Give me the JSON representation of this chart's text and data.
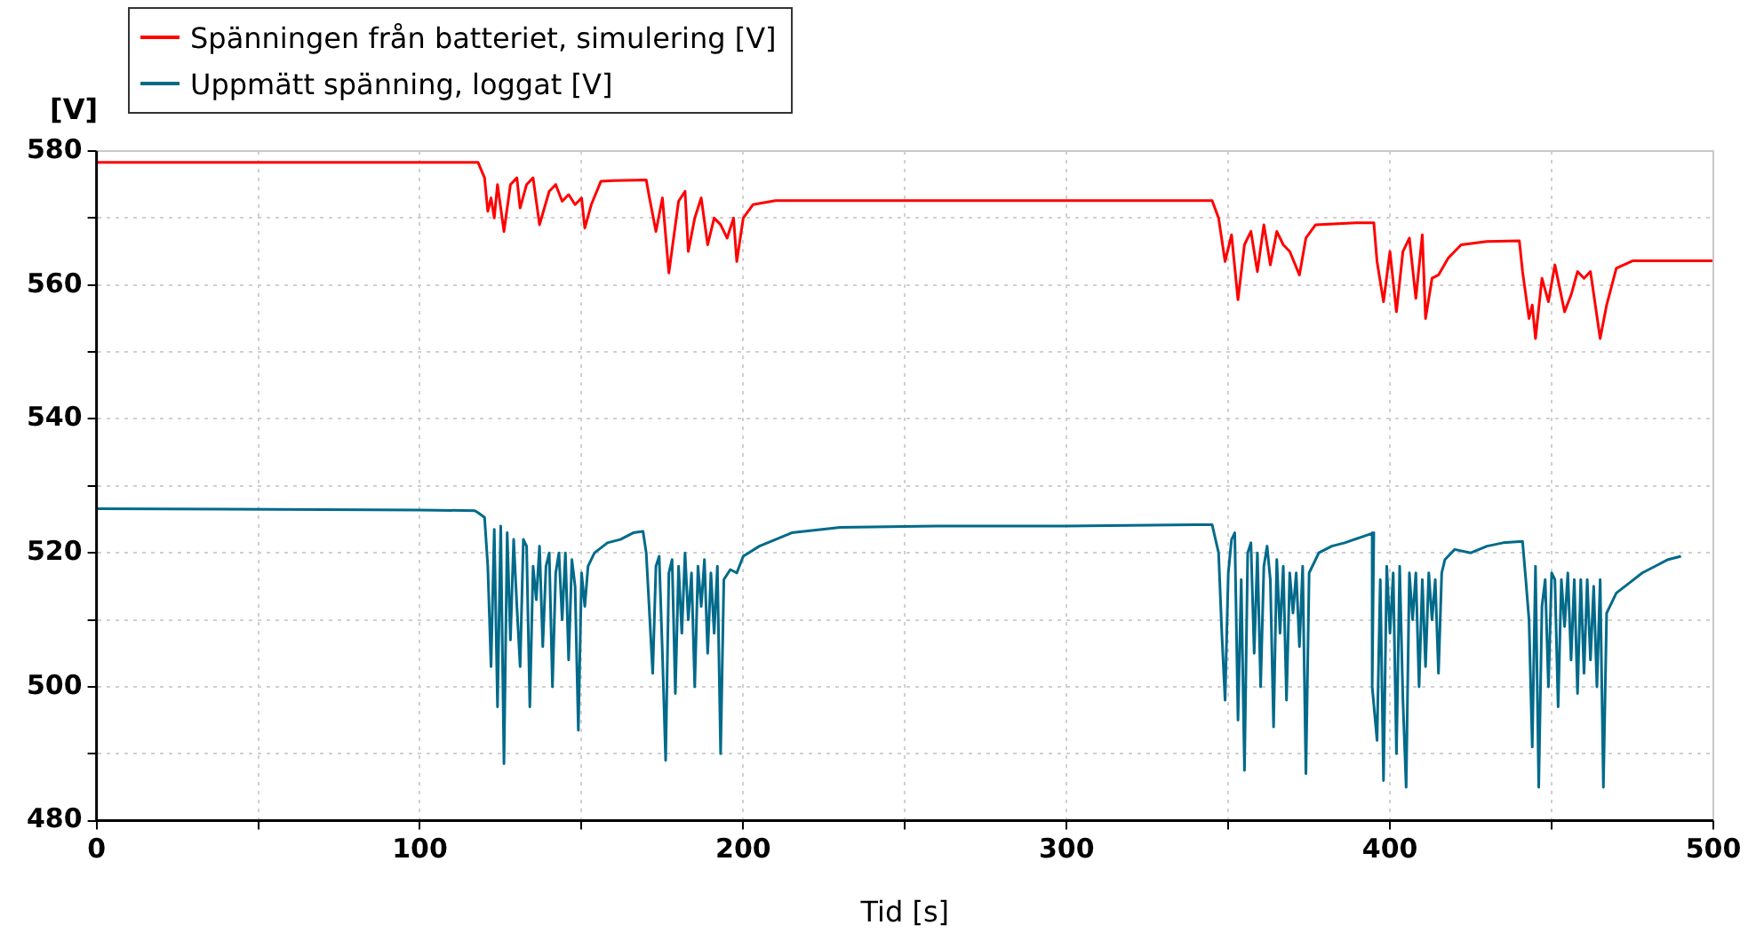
{
  "chart_data": {
    "type": "line",
    "xlabel": "Tid [s]",
    "ylabel": "[V]",
    "xlim": [
      0,
      500
    ],
    "ylim": [
      480,
      580
    ],
    "xticks": [
      0,
      {
        "value": 50,
        "label": null
      },
      100,
      {
        "value": 150,
        "label": null
      },
      200,
      {
        "value": 250,
        "label": null
      },
      300,
      {
        "value": 350,
        "label": null
      },
      400,
      {
        "value": 450,
        "label": null
      },
      500
    ],
    "yticks": [
      480,
      {
        "value": 490,
        "label": null
      },
      500,
      {
        "value": 510,
        "label": null
      },
      520,
      {
        "value": 530,
        "label": null
      },
      540,
      {
        "value": 550,
        "label": null
      },
      560,
      {
        "value": 570,
        "label": null
      },
      580
    ],
    "grid": true,
    "legend": "top left",
    "marker": "none",
    "line_style": "solid",
    "series": [
      {
        "name": "Spänningen från batteriet, simulering [V]",
        "color": "#ff0000",
        "x": [
          0,
          118,
          120,
          121,
          122,
          123,
          124,
          126,
          128,
          130,
          131,
          133,
          135,
          137,
          140,
          142,
          144,
          146,
          148,
          150,
          151,
          153,
          156,
          160,
          170,
          171,
          173,
          175,
          177,
          180,
          182,
          183,
          185,
          187,
          189,
          191,
          193,
          195,
          197,
          198,
          200,
          203,
          210,
          345,
          347,
          349,
          351,
          353,
          355,
          357,
          359,
          361,
          363,
          365,
          367,
          369,
          372,
          374,
          377,
          390,
          395,
          396,
          398,
          400,
          402,
          404,
          406,
          408,
          410,
          411,
          413,
          415,
          418,
          422,
          430,
          440,
          441,
          443,
          444,
          445,
          447,
          449,
          451,
          454,
          456,
          458,
          460,
          462,
          465,
          467,
          470,
          475,
          500
        ],
        "values": [
          578.3,
          578.3,
          576,
          571,
          573,
          570,
          575,
          568,
          575,
          576,
          571.5,
          575,
          576,
          569,
          574,
          575,
          572.5,
          573.5,
          572,
          573,
          568.5,
          572,
          575.5,
          575.6,
          575.7,
          573,
          568,
          573,
          561.8,
          572.5,
          574,
          565,
          570,
          573,
          566,
          570,
          569,
          567,
          570,
          563.5,
          570,
          572,
          572.6,
          572.6,
          570,
          563.5,
          567.5,
          557.8,
          566,
          568,
          562,
          569,
          563,
          568,
          566,
          565,
          561.5,
          567,
          569,
          569.3,
          569.3,
          563.5,
          557.5,
          565,
          556,
          565,
          567,
          558,
          567.5,
          555,
          561,
          561.5,
          564,
          566,
          566.5,
          566.6,
          562,
          555,
          557,
          552,
          561,
          557.5,
          563,
          556,
          558.5,
          562,
          561,
          562,
          552,
          557,
          562.5,
          563.6,
          563.6
        ]
      },
      {
        "name": "Uppmätt spänning, loggat [V]",
        "color": "#006a8a",
        "x": [
          0,
          100,
          117,
          118,
          120,
          121,
          122,
          123,
          124,
          125,
          126,
          127,
          128,
          129,
          130,
          131,
          132,
          133,
          134,
          135,
          136,
          137,
          138,
          139,
          140,
          141,
          142,
          143,
          144,
          145,
          146,
          147,
          148,
          149,
          150,
          151,
          152,
          153,
          154,
          158,
          162,
          166,
          169,
          170,
          172,
          173,
          174,
          175,
          176,
          177,
          178,
          179,
          180,
          181,
          182,
          183,
          184,
          185,
          186,
          187,
          188,
          189,
          190,
          191,
          192,
          193,
          194,
          196,
          198,
          200,
          205,
          215,
          230,
          260,
          300,
          340,
          345,
          347,
          348,
          349,
          350,
          351,
          352,
          353,
          354,
          355,
          356,
          357,
          358,
          359,
          360,
          361,
          362,
          363,
          364,
          365,
          366,
          367,
          368,
          369,
          370,
          371,
          372,
          373,
          374,
          375,
          378,
          382,
          386,
          392,
          395,
          394.5,
          396,
          397,
          398,
          399,
          400,
          401,
          402,
          403,
          404,
          405,
          406,
          407,
          408,
          409,
          410,
          411,
          412,
          413,
          414,
          415,
          416,
          417,
          420,
          425,
          430,
          435,
          441,
          442,
          443,
          444,
          445,
          446,
          447,
          448,
          449,
          450,
          451,
          452,
          453,
          454,
          455,
          456,
          457,
          458,
          459,
          460,
          461,
          462,
          463,
          464,
          465,
          466,
          467,
          468,
          470,
          474,
          478,
          482,
          486,
          490
        ],
        "values": [
          526.6,
          526.4,
          526.3,
          526,
          525.3,
          518,
          503,
          523.5,
          497,
          524,
          488.5,
          523,
          507,
          522,
          512,
          503,
          522,
          521,
          497,
          518,
          513,
          521,
          506,
          518,
          520,
          500,
          517,
          520,
          510,
          520,
          504,
          519,
          515,
          493.5,
          517,
          512,
          518,
          519,
          520,
          521.5,
          522,
          523,
          523.2,
          520,
          502,
          518,
          519.5,
          505,
          489,
          517,
          519,
          499,
          518,
          508,
          520,
          510,
          517,
          500,
          518,
          512,
          519,
          505,
          517,
          508,
          518,
          490,
          516,
          517.5,
          517,
          519.5,
          521,
          523,
          523.8,
          524,
          524,
          524.2,
          524.2,
          520,
          508,
          498,
          517,
          522,
          523,
          495,
          516,
          487.5,
          520,
          521.5,
          505,
          520,
          500,
          518,
          521,
          516,
          494,
          519,
          508,
          518,
          498,
          517,
          511,
          517,
          506,
          518,
          487,
          517,
          520,
          521,
          521.5,
          522.5,
          523,
          500,
          492,
          516,
          486,
          518,
          508,
          517,
          490,
          518,
          498,
          485,
          517,
          510,
          517,
          500,
          516,
          503,
          517,
          510,
          516,
          502,
          517,
          519,
          520.5,
          520,
          521,
          521.5,
          521.7,
          516,
          510,
          491,
          518,
          485,
          512,
          516,
          500,
          517,
          516,
          497,
          516,
          509,
          517,
          504,
          516,
          499,
          516,
          502,
          516,
          504,
          515,
          500,
          516,
          485,
          511,
          512,
          514,
          515.5,
          517,
          518,
          519,
          519.5
        ]
      }
    ]
  }
}
